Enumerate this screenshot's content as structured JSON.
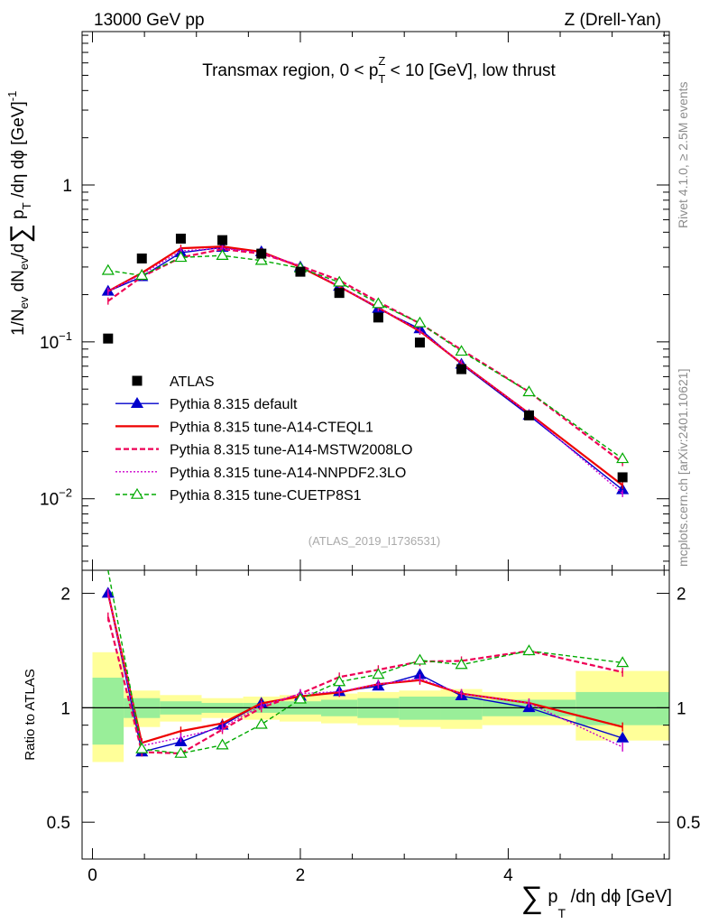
{
  "header": {
    "left": "13000 GeV pp",
    "right": "Z (Drell-Yan)"
  },
  "top_panel": {
    "title_parts": {
      "a": "Transmax region, 0 < p",
      "sup": "Z",
      "sub": "T",
      "b": " < 10 [GeV], low thrust"
    },
    "ylabel_parts": {
      "a": "1/N",
      "sub1": "ev",
      "b": " dN",
      "sub2": "ev",
      "c": "/d",
      "sum": "∑",
      "d": " p",
      "sub3": "T",
      "e": " /dη dϕ  [GeV]",
      "sup": "-1"
    },
    "yticks": [
      {
        "label": "1",
        "value": 1
      },
      {
        "label_base": "10",
        "label_exp": "−1",
        "value": 0.1
      },
      {
        "label_base": "10",
        "label_exp": "−2",
        "value": 0.01
      }
    ],
    "watermark": "(ATLAS_2019_I1736531)"
  },
  "ratio_panel": {
    "ylabel": "Ratio to ATLAS",
    "yticks": [
      {
        "label": "2",
        "value": 2
      },
      {
        "label": "1",
        "value": 1
      },
      {
        "label": "0.5",
        "value": 0.5
      }
    ]
  },
  "xaxis": {
    "ticks": [
      {
        "label": "0",
        "value": 0
      },
      {
        "label": "2",
        "value": 2
      },
      {
        "label": "4",
        "value": 4
      }
    ],
    "label_parts": {
      "sum": "∑",
      "a": " p",
      "sub": "T",
      "b": " /dη dϕ [GeV]"
    }
  },
  "side_text": {
    "rivet": "Rivet 4.1.0, ≥ 2.5M events",
    "mcplots": "mcplots.cern.ch [arXiv:2401.10621]"
  },
  "chart_data": {
    "type": "scatter",
    "xlim": [
      -0.1,
      5.55
    ],
    "ylim_main": [
      0.0035,
      9.5
    ],
    "ylim_ratio": [
      0.4,
      2.3
    ],
    "bin_edges": [
      0.0,
      0.3,
      0.65,
      1.05,
      1.45,
      1.8,
      2.2,
      2.55,
      2.95,
      3.35,
      3.75,
      4.65,
      5.55
    ],
    "x": [
      0.15,
      0.475,
      0.85,
      1.25,
      1.625,
      2.0,
      2.375,
      2.75,
      3.15,
      3.55,
      4.2,
      5.1
    ],
    "data": {
      "name": "ATLAS",
      "values": [
        0.105,
        0.34,
        0.455,
        0.445,
        0.365,
        0.28,
        0.205,
        0.143,
        0.099,
        0.067,
        0.034,
        0.0137
      ]
    },
    "band_inner": [
      0.8,
      1.2,
      0.94,
      1.06,
      0.96,
      1.04,
      0.97,
      1.03,
      0.97,
      1.03,
      0.96,
      1.04,
      0.95,
      1.05,
      0.94,
      1.06,
      0.93,
      1.07,
      0.93,
      1.07,
      0.95,
      1.05,
      0.9,
      1.1
    ],
    "band_outer": [
      0.72,
      1.4,
      0.89,
      1.11,
      0.92,
      1.08,
      0.94,
      1.06,
      0.93,
      1.07,
      0.92,
      1.08,
      0.91,
      1.09,
      0.9,
      1.1,
      0.89,
      1.11,
      0.88,
      1.12,
      0.9,
      1.1,
      0.82,
      1.25
    ],
    "series": [
      {
        "name": "Pythia 8.315 default",
        "color": "#0000cc",
        "dash": "",
        "marker": "tri-filled",
        "values": [
          0.21,
          0.26,
          0.37,
          0.4,
          0.375,
          0.3,
          0.226,
          0.163,
          0.121,
          0.072,
          0.034,
          0.0114
        ]
      },
      {
        "name": "Pythia 8.315 tune-A14-CTEQL1",
        "color": "#ee0000",
        "dash": "",
        "marker": "none",
        "width": 2.2,
        "values": [
          0.21,
          0.275,
          0.395,
          0.405,
          0.375,
          0.3,
          0.225,
          0.165,
          0.117,
          0.073,
          0.035,
          0.0122
        ]
      },
      {
        "name": "Pythia 8.315 tune-A14-MSTW2008LO",
        "color": "#ee0055",
        "dash": "6,3",
        "marker": "none",
        "width": 2.2,
        "values": [
          0.182,
          0.26,
          0.345,
          0.39,
          0.365,
          0.305,
          0.247,
          0.18,
          0.131,
          0.089,
          0.048,
          0.017
        ]
      },
      {
        "name": "Pythia 8.315 tune-A14-NNPDF2.3LO",
        "color": "#cc00cc",
        "dash": "2,2",
        "marker": "none",
        "values": [
          0.21,
          0.27,
          0.38,
          0.395,
          0.37,
          0.305,
          0.226,
          0.165,
          0.118,
          0.073,
          0.035,
          0.0108
        ]
      },
      {
        "name": "Pythia 8.315 tune-CUETP8S1",
        "color": "#00aa00",
        "dash": "5,3",
        "marker": "tri-open",
        "values": [
          0.285,
          0.265,
          0.345,
          0.355,
          0.33,
          0.295,
          0.24,
          0.175,
          0.132,
          0.087,
          0.048,
          0.018
        ]
      }
    ]
  }
}
